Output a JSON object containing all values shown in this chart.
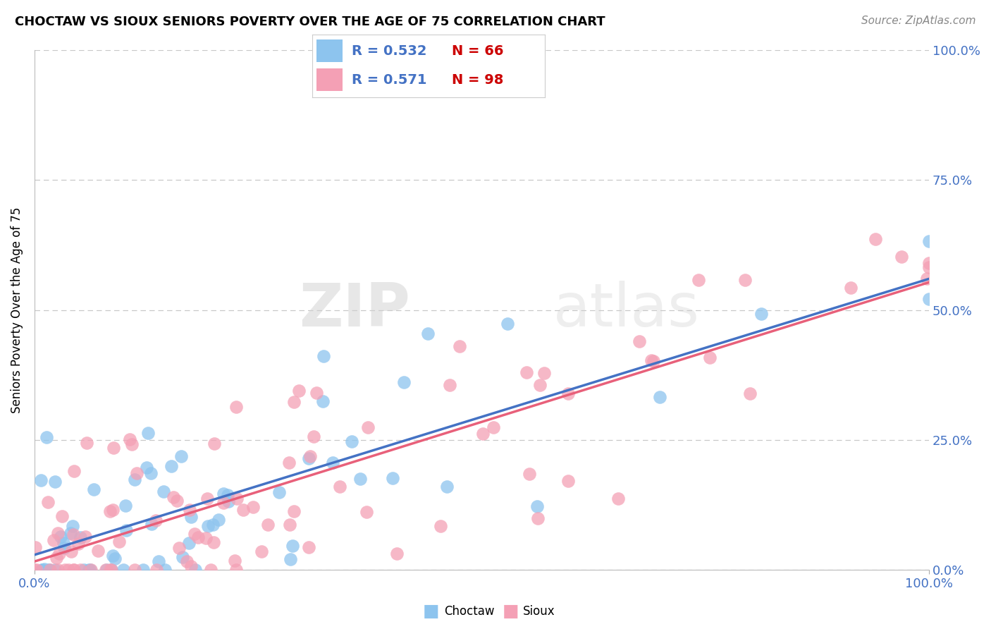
{
  "title": "CHOCTAW VS SIOUX SENIORS POVERTY OVER THE AGE OF 75 CORRELATION CHART",
  "source_text": "Source: ZipAtlas.com",
  "ylabel": "Seniors Poverty Over the Age of 75",
  "xlim": [
    0.0,
    1.0
  ],
  "ylim": [
    0.0,
    1.0
  ],
  "ytick_labels": [
    "0.0%",
    "25.0%",
    "50.0%",
    "75.0%",
    "100.0%"
  ],
  "ytick_positions": [
    0.0,
    0.25,
    0.5,
    0.75,
    1.0
  ],
  "grid_color": "#c8c8c8",
  "background_color": "#ffffff",
  "choctaw_color": "#8DC4EE",
  "sioux_color": "#F4A0B5",
  "choctaw_line_color": "#4472C4",
  "sioux_line_color": "#E8607A",
  "choctaw_R": 0.532,
  "choctaw_N": 66,
  "sioux_R": 0.571,
  "sioux_N": 98,
  "legend_R_color": "#4472C4",
  "legend_N_color": "#cc0000",
  "watermark_zip": "ZIP",
  "watermark_atlas": "atlas",
  "title_fontsize": 13,
  "axis_label_color": "#4472C4",
  "ylabel_fontsize": 12
}
